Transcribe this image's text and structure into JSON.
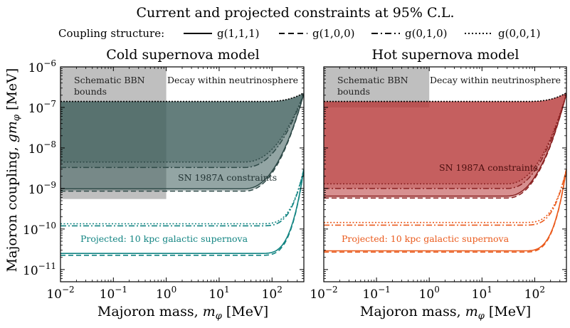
{
  "figure_title": "Current and projected constraints at 95% C.L.",
  "legend": {
    "title": "Coupling structure:",
    "entries": [
      {
        "label": "g(1,1,1)",
        "dash": "solid"
      },
      {
        "label": "g(1,0,0)",
        "dash": "dashed"
      },
      {
        "label": "g(0,1,0)",
        "dash": "dashdot"
      },
      {
        "label": "g(0,0,1)",
        "dash": "dotted"
      }
    ]
  },
  "axes": {
    "ylabel": "Majoron coupling, gm_φ [MeV]",
    "xlabel": "Majoron mass, m_φ [MeV]",
    "xlim": [
      0.01,
      400
    ],
    "ylim": [
      5e-12,
      1e-06
    ],
    "xscale": "log",
    "yscale": "log",
    "xticks": [
      {
        "value": 0.01,
        "base": "10",
        "exp": "−2"
      },
      {
        "value": 0.1,
        "base": "10",
        "exp": "−1"
      },
      {
        "value": 1,
        "base": "10",
        "exp": "0"
      },
      {
        "value": 10,
        "base": "10",
        "exp": "1"
      },
      {
        "value": 100,
        "base": "10",
        "exp": "2"
      }
    ],
    "yticks": [
      {
        "value": 1e-06,
        "base": "10",
        "exp": "−6"
      },
      {
        "value": 1e-07,
        "base": "10",
        "exp": "−7"
      },
      {
        "value": 1e-08,
        "base": "10",
        "exp": "−8"
      },
      {
        "value": 1e-09,
        "base": "10",
        "exp": "−9"
      },
      {
        "value": 1e-10,
        "base": "10",
        "exp": "−10"
      },
      {
        "value": 1e-11,
        "base": "10",
        "exp": "−11"
      }
    ]
  },
  "chart_data": [
    {
      "type": "area",
      "title": "Cold supernova model",
      "colors": {
        "region": "#41605f",
        "line": "#2f4a48",
        "projected": "#128482"
      },
      "bbn": {
        "label_line1": "Schematic BBN",
        "label_line2": "bounds",
        "x_max": 1,
        "y_min": 5.5e-10,
        "color": "#aaaaaa"
      },
      "annotations": {
        "decay": "Decay within neutrinosphere",
        "sn1987a": "SN 1987A constraints",
        "projected": "Projected: 10 kpc galactic supernova"
      },
      "upper_bound": {
        "y_plateau": 1.4e-07,
        "y_at_xmax": 2.3e-07
      },
      "series": [
        {
          "coupling": "g(1,1,1)",
          "dash": "solid",
          "sn1987a_lower": 9.8e-10,
          "projected": 2.5e-11
        },
        {
          "coupling": "g(1,0,0)",
          "dash": "dashed",
          "sn1987a_lower": 8.6e-10,
          "projected": 2.25e-11
        },
        {
          "coupling": "g(0,1,0)",
          "dash": "dashdot",
          "sn1987a_lower": 3.3e-09,
          "projected": 1.2e-10
        },
        {
          "coupling": "g(0,0,1)",
          "dash": "dotted",
          "sn1987a_lower": 4.5e-09,
          "projected": 1.35e-10
        }
      ]
    },
    {
      "type": "area",
      "title": "Hot supernova model",
      "colors": {
        "region": "#b83c3c",
        "line": "#8a2222",
        "projected": "#ea5a1c"
      },
      "bbn": {
        "label_line1": "Schematic BBN",
        "label_line2": "bounds",
        "x_max": 1,
        "y_min": 1e-07,
        "color": "#aaaaaa"
      },
      "annotations": {
        "decay": "Decay within neutrinosphere",
        "sn1987a": "SN 1987A constraints",
        "projected": "Projected: 10 kpc galactic supernova"
      },
      "upper_bound": {
        "y_plateau": 1.4e-07,
        "y_at_xmax": 2.3e-07
      },
      "series": [
        {
          "coupling": "g(1,1,1)",
          "dash": "solid",
          "sn1987a_lower": 6.5e-10,
          "projected": 2.9e-11
        },
        {
          "coupling": "g(1,0,0)",
          "dash": "dashed",
          "sn1987a_lower": 5.8e-10,
          "projected": 2.7e-11
        },
        {
          "coupling": "g(0,1,0)",
          "dash": "dashdot",
          "sn1987a_lower": 1e-09,
          "projected": 1.25e-10
        },
        {
          "coupling": "g(0,0,1)",
          "dash": "dotted",
          "sn1987a_lower": 1.3e-09,
          "projected": 1.45e-10
        }
      ]
    }
  ]
}
